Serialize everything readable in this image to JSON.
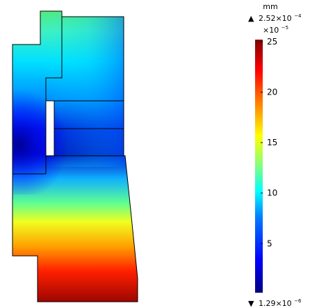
{
  "legend": {
    "unit": "mm",
    "max_marker": "▲",
    "max_value": "2.52×10",
    "max_exponent": "−4",
    "scale_factor": "×10",
    "scale_exponent": "−5",
    "min_marker": "▼",
    "min_value": "1.29×10",
    "min_exponent": "−6",
    "ticks": [
      "25",
      "20",
      "15",
      "10",
      "5"
    ],
    "tick_values": [
      25,
      20,
      15,
      10,
      5
    ],
    "range": [
      0.129,
      25.2
    ]
  },
  "colormap": [
    "#00007f",
    "#0000ff",
    "#0080ff",
    "#00ffff",
    "#80ff80",
    "#ffff00",
    "#ff8000",
    "#ff0000",
    "#7f0000"
  ]
}
